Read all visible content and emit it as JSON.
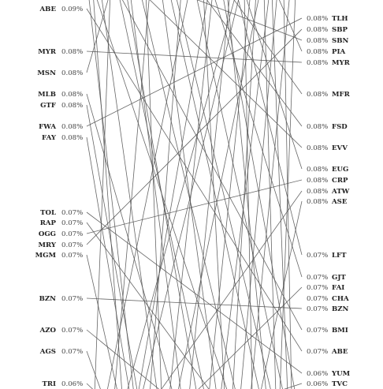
{
  "chart_data": {
    "type": "slope",
    "title": "",
    "xlabel": "",
    "ylabel": "",
    "left": {
      "labels": [
        {
          "code": "ABE",
          "value": "0.09%"
        },
        {
          "code": "MYR",
          "value": "0.08%"
        },
        {
          "code": "MSN",
          "value": "0.08%"
        },
        {
          "code": "MLB",
          "value": "0.08%"
        },
        {
          "code": "GTF",
          "value": "0.08%"
        },
        {
          "code": "FWA",
          "value": "0.08%"
        },
        {
          "code": "FAY",
          "value": "0.08%"
        },
        {
          "code": "TOL",
          "value": "0.07%"
        },
        {
          "code": "RAP",
          "value": "0.07%"
        },
        {
          "code": "OGG",
          "value": "0.07%"
        },
        {
          "code": "MRY",
          "value": "0.07%"
        },
        {
          "code": "MGM",
          "value": "0.07%"
        },
        {
          "code": "BZN",
          "value": "0.07%"
        },
        {
          "code": "AZO",
          "value": "0.07%"
        },
        {
          "code": "AGS",
          "value": "0.07%"
        },
        {
          "code": "TRI",
          "value": "0.06%"
        }
      ]
    },
    "right": {
      "labels": [
        {
          "code": "TLH",
          "value": "0.08%"
        },
        {
          "code": "SBP",
          "value": "0.08%"
        },
        {
          "code": "SBN",
          "value": "0.08%"
        },
        {
          "code": "PIA",
          "value": "0.08%"
        },
        {
          "code": "MYR",
          "value": "0.08%"
        },
        {
          "code": "MFR",
          "value": "0.08%"
        },
        {
          "code": "FSD",
          "value": "0.08%"
        },
        {
          "code": "EVV",
          "value": "0.08%"
        },
        {
          "code": "EUG",
          "value": "0.08%"
        },
        {
          "code": "CRP",
          "value": "0.08%"
        },
        {
          "code": "ATW",
          "value": "0.08%"
        },
        {
          "code": "ASE",
          "value": "0.08%"
        },
        {
          "code": "LFT",
          "value": "0.07%"
        },
        {
          "code": "GJT",
          "value": "0.07%"
        },
        {
          "code": "FAI",
          "value": "0.07%"
        },
        {
          "code": "CHA",
          "value": "0.07%"
        },
        {
          "code": "BZN",
          "value": "0.07%"
        },
        {
          "code": "BMI",
          "value": "0.07%"
        },
        {
          "code": "ABE",
          "value": "0.07%"
        },
        {
          "code": "YUM",
          "value": "0.06%"
        },
        {
          "code": "TVC",
          "value": "0.06%"
        }
      ]
    },
    "connections": [
      {
        "from": "MYR",
        "to": "MYR"
      },
      {
        "from": "BZN",
        "to": "BZN"
      },
      {
        "from": "ABE",
        "to": "ABE"
      }
    ]
  }
}
